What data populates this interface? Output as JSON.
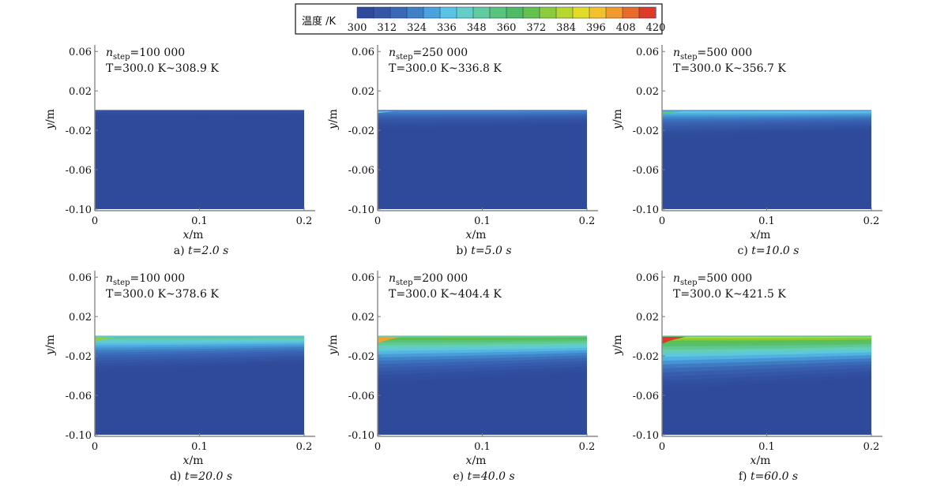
{
  "colorbar": {
    "title": "温度 /K",
    "ticks": [
      "300",
      "312",
      "324",
      "336",
      "348",
      "360",
      "372",
      "384",
      "396",
      "408",
      "420"
    ],
    "min": 300,
    "max": 420,
    "colors": [
      "#2f4a9a",
      "#3557a8",
      "#3a67b6",
      "#3f80c6",
      "#4aa3dd",
      "#5bc4e6",
      "#63cfc6",
      "#62cb9e",
      "#5bc47c",
      "#4fbb62",
      "#62c24c",
      "#8ccc3c",
      "#b8d62e",
      "#e2dc28",
      "#f3c22a",
      "#f29a2c",
      "#ea6a2a",
      "#dd3a28"
    ]
  },
  "axes_common": {
    "xlabel": "x",
    "xunit": "/m",
    "ylabel": "y",
    "yunit": "/m",
    "xticks": [
      "0",
      "0.1",
      "0.2"
    ],
    "yticks": [
      "0.06",
      "0.02",
      "-0.02",
      "-0.06",
      "-0.10"
    ]
  },
  "chart_data": [
    {
      "type": "heatmap",
      "panel": "a)",
      "time": "t=2.0 s",
      "n_step": "=100 000",
      "T_range": "T=300.0 K~308.9 K",
      "xlim": [
        0,
        0.2
      ],
      "ylim": [
        -0.1,
        0.065
      ],
      "surface_y": 0.0,
      "T_min": 300.0,
      "T_max": 308.9
    },
    {
      "type": "heatmap",
      "panel": "b)",
      "time": "t=5.0 s",
      "n_step": "=250 000",
      "T_range": "T=300.0 K~336.8 K",
      "xlim": [
        0,
        0.2
      ],
      "ylim": [
        -0.1,
        0.065
      ],
      "surface_y": 0.0,
      "T_min": 300.0,
      "T_max": 336.8
    },
    {
      "type": "heatmap",
      "panel": "c)",
      "time": "t=10.0 s",
      "n_step": "=500 000",
      "T_range": "T=300.0 K~356.7 K",
      "xlim": [
        0,
        0.2
      ],
      "ylim": [
        -0.1,
        0.065
      ],
      "surface_y": 0.0,
      "T_min": 300.0,
      "T_max": 356.7
    },
    {
      "type": "heatmap",
      "panel": "d)",
      "time": "t=20.0 s",
      "n_step": "=100 000",
      "T_range": "T=300.0 K~378.6 K",
      "xlim": [
        0,
        0.2
      ],
      "ylim": [
        -0.1,
        0.065
      ],
      "surface_y": 0.0,
      "T_min": 300.0,
      "T_max": 378.6
    },
    {
      "type": "heatmap",
      "panel": "e)",
      "time": "t=40.0 s",
      "n_step": "=200 000",
      "T_range": "T=300.0 K~404.4 K",
      "xlim": [
        0,
        0.2
      ],
      "ylim": [
        -0.1,
        0.065
      ],
      "surface_y": 0.0,
      "T_min": 300.0,
      "T_max": 404.4
    },
    {
      "type": "heatmap",
      "panel": "f)",
      "time": "t=60.0 s",
      "n_step": "=500 000",
      "T_range": "T=300.0 K~421.5 K",
      "xlim": [
        0,
        0.2
      ],
      "ylim": [
        -0.1,
        0.065
      ],
      "surface_y": 0.0,
      "T_min": 300.0,
      "T_max": 421.5
    }
  ]
}
